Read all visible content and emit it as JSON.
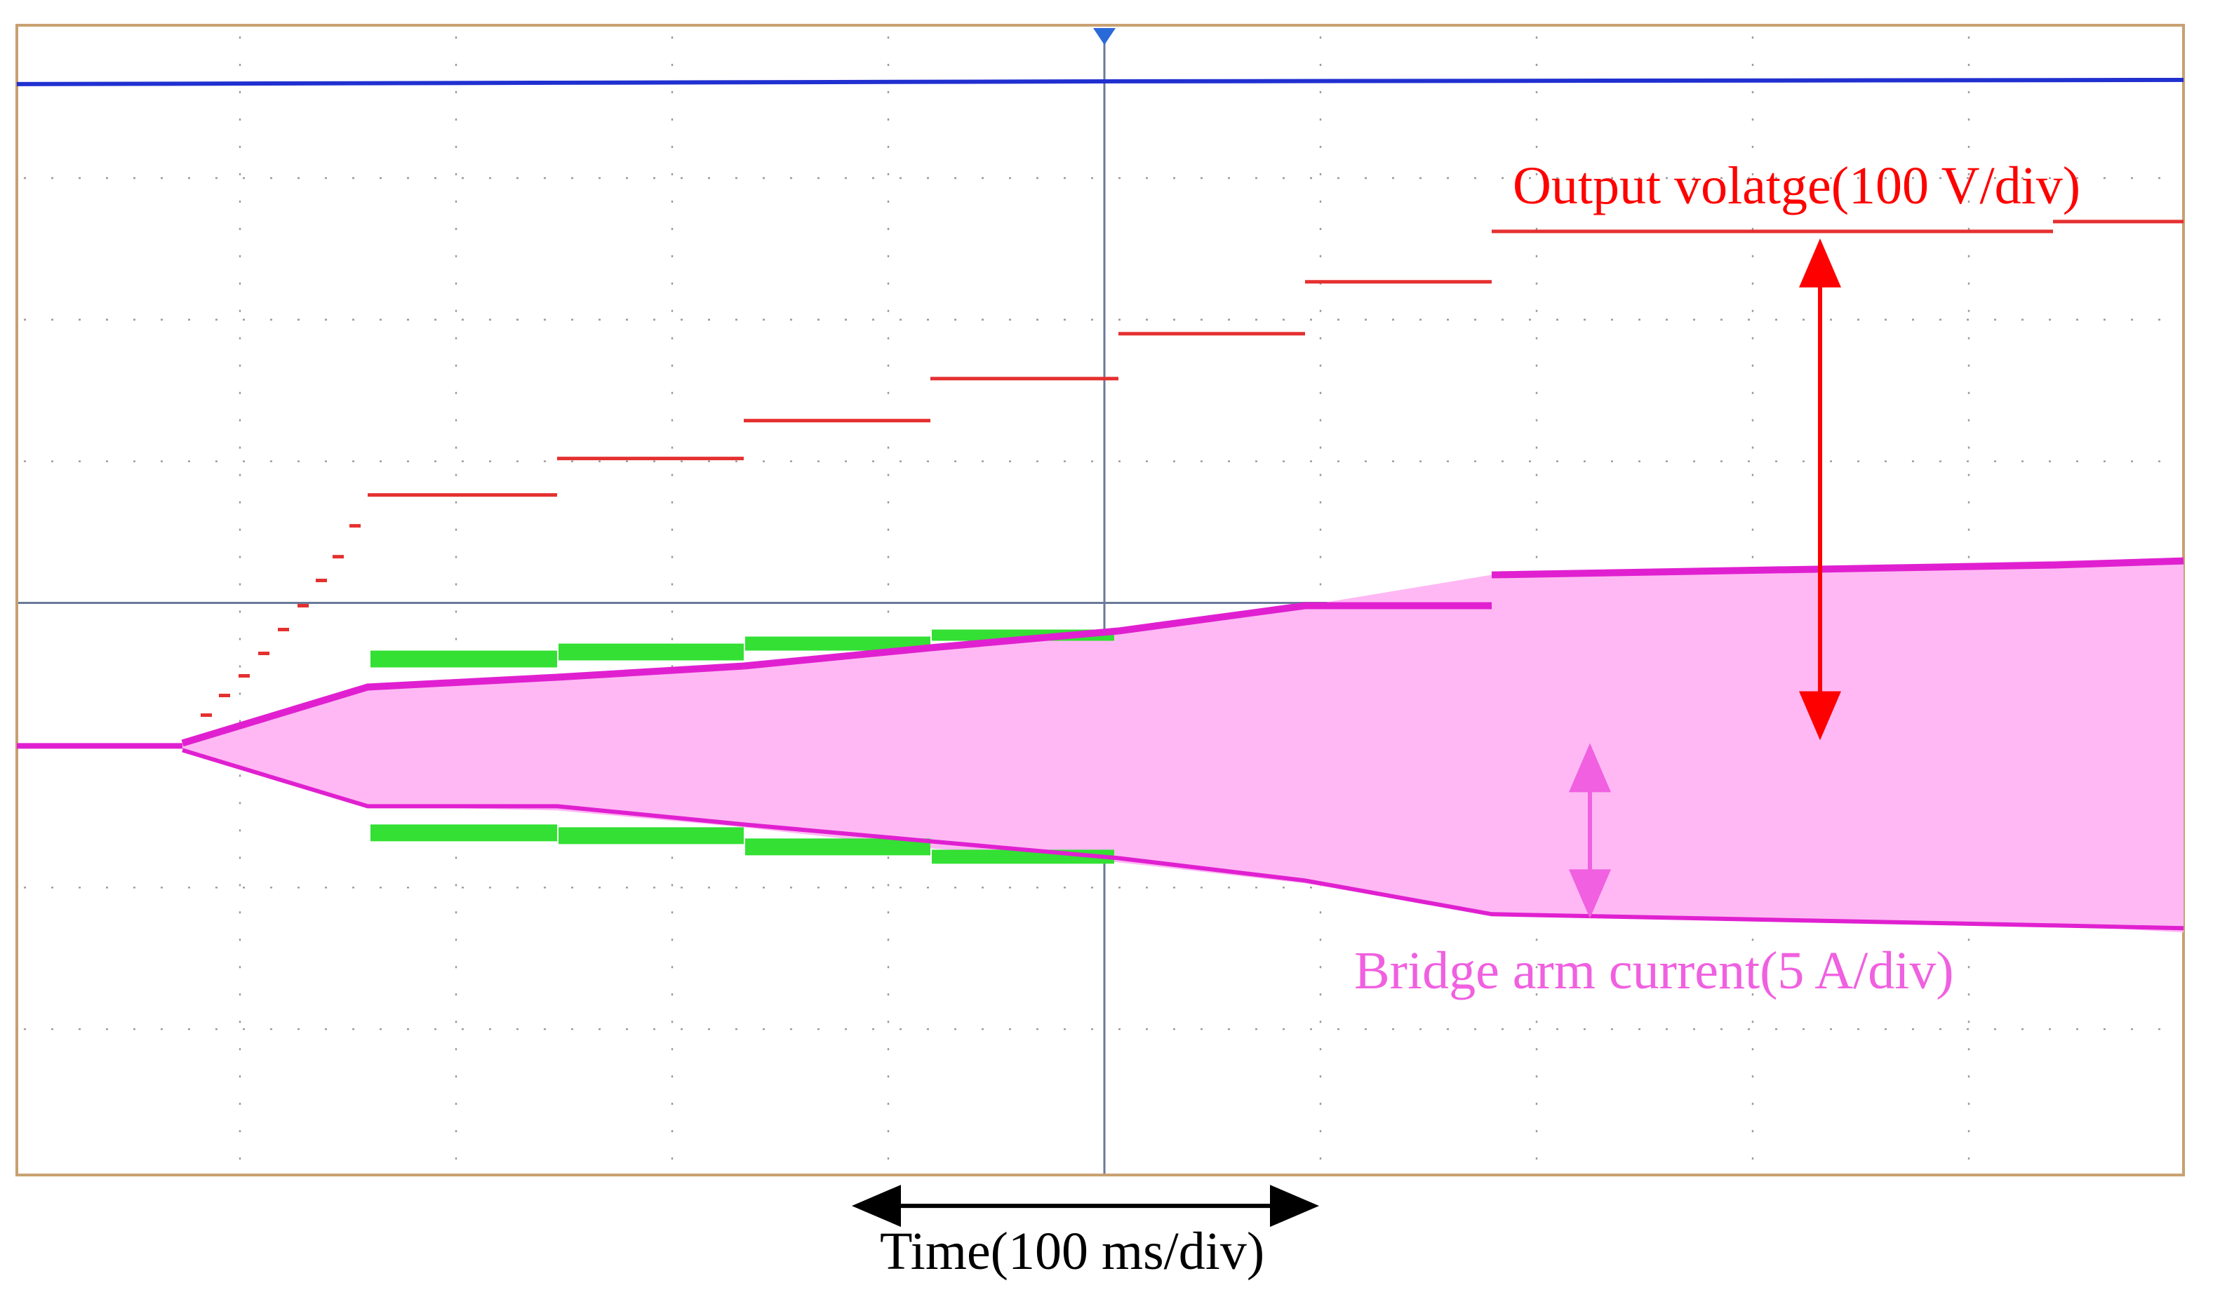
{
  "annotations": {
    "output_voltage": "Output volatge(100 V/div)",
    "bridge_current": "Bridge arm current(5 A/div)",
    "time": "Time(100 ms/div)"
  }
}
